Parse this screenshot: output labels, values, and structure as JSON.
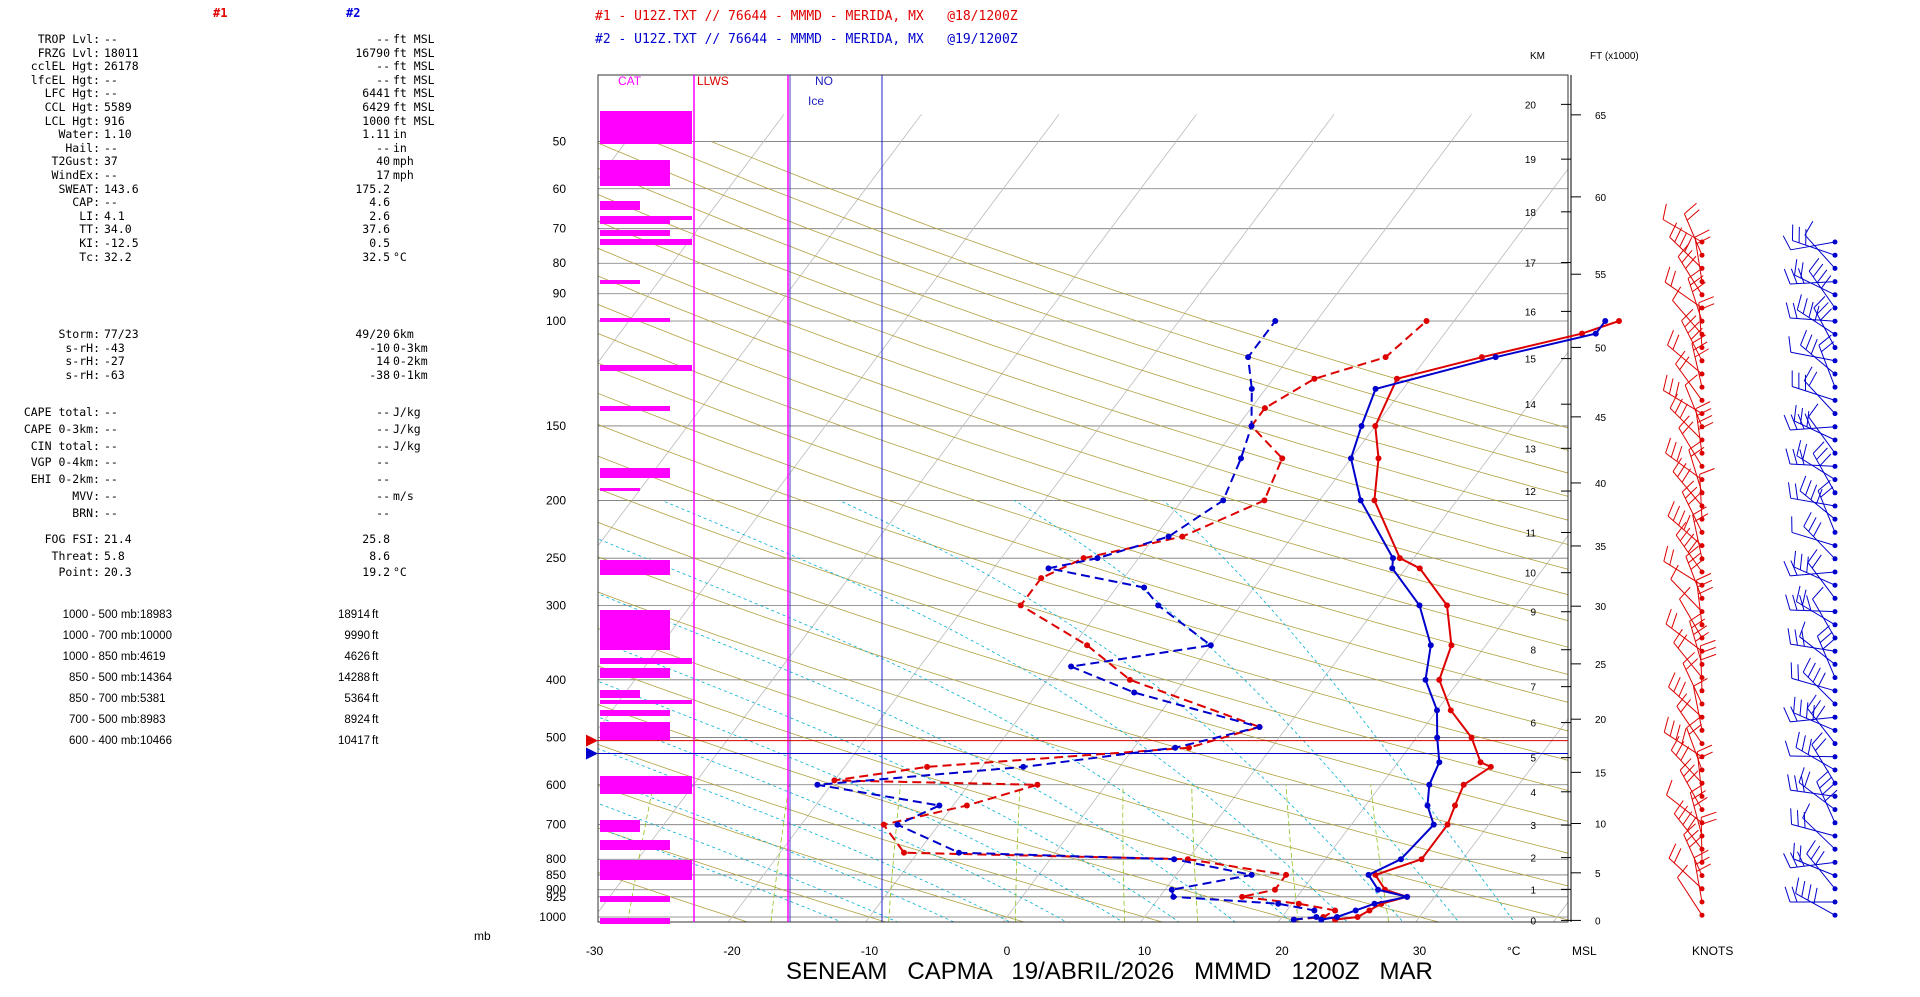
{
  "stats": {
    "header_1": "#1",
    "header_2": "#2",
    "rows": [
      {
        "label": "TROP Lvl:",
        "v1": "--",
        "v2": "--",
        "unit": "ft MSL"
      },
      {
        "label": "FRZG Lvl:",
        "v1": "18011",
        "v2": "16790",
        "unit": "ft MSL"
      },
      {
        "label": "cclEL Hgt:",
        "v1": "26178",
        "v2": "--",
        "unit": "ft MSL"
      },
      {
        "label": "lfcEL Hgt:",
        "v1": "--",
        "v2": "--",
        "unit": "ft MSL"
      },
      {
        "label": "LFC Hgt:",
        "v1": "--",
        "v2": "6441",
        "unit": "ft MSL"
      },
      {
        "label": "CCL Hgt:",
        "v1": "5589",
        "v2": "6429",
        "unit": "ft MSL"
      },
      {
        "label": "LCL Hgt:",
        "v1": "916",
        "v2": "1000",
        "unit": "ft MSL"
      },
      {
        "label": "Water:",
        "v1": "1.10",
        "v2": "1.11",
        "unit": "in"
      },
      {
        "label": "Hail:",
        "v1": "--",
        "v2": "--",
        "unit": "in"
      },
      {
        "label": "T2Gust:",
        "v1": "37",
        "v2": "40",
        "unit": "mph"
      },
      {
        "label": "WindEx:",
        "v1": "--",
        "v2": "17",
        "unit": "mph"
      },
      {
        "label": "SWEAT:",
        "v1": "143.6",
        "v2": "175.2",
        "unit": ""
      },
      {
        "label": "CAP:",
        "v1": "--",
        "v2": "4.6",
        "unit": ""
      },
      {
        "label": "LI:",
        "v1": "4.1",
        "v2": "2.6",
        "unit": ""
      },
      {
        "label": "TT:",
        "v1": "34.0",
        "v2": "37.6",
        "unit": ""
      },
      {
        "label": "KI:",
        "v1": "-12.5",
        "v2": "0.5",
        "unit": ""
      },
      {
        "label": "Tc:",
        "v1": "32.2",
        "v2": "32.5",
        "unit": "°C"
      }
    ],
    "rows_b": [
      {
        "label": "Storm:",
        "v1": "77/23",
        "v2": "49/20",
        "unit": "6km"
      },
      {
        "label": "s-rH:",
        "v1": "-43",
        "v2": "-10",
        "unit": "0-3km"
      },
      {
        "label": "s-rH:",
        "v1": "-27",
        "v2": "14",
        "unit": "0-2km"
      },
      {
        "label": "s-rH:",
        "v1": "-63",
        "v2": "-38",
        "unit": "0-1km"
      }
    ],
    "rows_c": [
      {
        "label": "CAPE total:",
        "v1": "--",
        "v2": "--",
        "unit": "J/kg"
      },
      {
        "label": "CAPE 0-3km:",
        "v1": "--",
        "v2": "--",
        "unit": "J/kg"
      },
      {
        "label": "CIN total:",
        "v1": "--",
        "v2": "--",
        "unit": "J/kg"
      },
      {
        "label": "VGP 0-4km:",
        "v1": "--",
        "v2": "--",
        "unit": ""
      },
      {
        "label": "EHI 0-2km:",
        "v1": "--",
        "v2": "--",
        "unit": ""
      },
      {
        "label": "MVV:",
        "v1": "--",
        "v2": "--",
        "unit": "m/s"
      },
      {
        "label": "BRN:",
        "v1": "--",
        "v2": "--",
        "unit": ""
      }
    ],
    "rows_d": [
      {
        "label": "FOG FSI:",
        "v1": "21.4",
        "v2": "25.8",
        "unit": ""
      },
      {
        "label": "Threat:",
        "v1": "5.8",
        "v2": "8.6",
        "unit": ""
      },
      {
        "label": "Point:",
        "v1": "20.3",
        "v2": "19.2",
        "unit": "°C"
      }
    ],
    "layers": [
      {
        "label": "1000 - 500 mb:",
        "v1": "18983",
        "v2": "18914",
        "unit": "ft"
      },
      {
        "label": "1000 - 700 mb:",
        "v1": "10000",
        "v2": "9990",
        "unit": "ft"
      },
      {
        "label": "1000 - 850 mb:",
        "v1": "4619",
        "v2": "4626",
        "unit": "ft"
      },
      {
        "label": "850 - 500 mb:",
        "v1": "14364",
        "v2": "14288",
        "unit": "ft"
      },
      {
        "label": "850 - 700 mb:",
        "v1": "5381",
        "v2": "5364",
        "unit": "ft"
      },
      {
        "label": "700 - 500 mb:",
        "v1": "8983",
        "v2": "8924",
        "unit": "ft"
      },
      {
        "label": "600 - 400 mb:",
        "v1": "10466",
        "v2": "10417",
        "unit": "ft"
      }
    ]
  },
  "titles": {
    "line1": "#1 - U12Z.TXT // 76644 - MMMD - MERIDA, MX   @18/1200Z",
    "line2": "#2 - U12Z.TXT // 76644 - MMMD - MERIDA, MX   @19/1200Z"
  },
  "footer": "SENEAM   CAPMA   19/ABRIL/2026   MMMD   1200Z   MAR",
  "colors": {
    "series1": "#dd0000",
    "series2": "#0000cc",
    "cloud": "#ff00ff",
    "grid": "#b0a040",
    "moist": "#00b0d0",
    "mixing": "#90c020"
  },
  "chart_data": {
    "type": "skew-t",
    "xlabel_unit": "°C",
    "ylabel_unit": "mb",
    "pressure_ticks": [
      50,
      60,
      70,
      80,
      90,
      100,
      150,
      200,
      250,
      300,
      400,
      500,
      600,
      700,
      800,
      850,
      900,
      925,
      1000
    ],
    "temp_ticks": [
      -30,
      -20,
      -10,
      0,
      10,
      20,
      30
    ],
    "km_label": "KM",
    "ft_label": "FT (x1000)",
    "msl_label": "MSL",
    "knots_label": "KNOTS",
    "km_ticks": [
      0,
      1,
      2,
      3,
      4,
      5,
      6,
      7,
      8,
      9,
      10,
      11,
      12,
      13,
      14,
      15,
      16,
      17,
      18,
      19,
      20
    ],
    "ft_ticks": [
      0,
      5,
      10,
      15,
      20,
      25,
      30,
      35,
      40,
      45,
      50,
      55,
      60,
      65
    ],
    "panel_labels": {
      "cat": "CAT",
      "llws": "LLWS",
      "no": "NO",
      "ice": "Ice"
    },
    "series": [
      {
        "name": "#1",
        "temperature": [
          [
            1010,
            24
          ],
          [
            1000,
            25.5
          ],
          [
            975,
            26
          ],
          [
            950,
            26.5
          ],
          [
            925,
            28
          ],
          [
            900,
            26
          ],
          [
            850,
            24.5
          ],
          [
            800,
            27
          ],
          [
            700,
            27
          ],
          [
            650,
            26.5
          ],
          [
            600,
            26
          ],
          [
            560,
            27
          ],
          [
            550,
            26
          ],
          [
            500,
            24
          ],
          [
            450,
            21
          ],
          [
            400,
            18.5
          ],
          [
            350,
            17.5
          ],
          [
            300,
            15
          ],
          [
            260,
            11
          ],
          [
            250,
            9
          ],
          [
            200,
            4
          ],
          [
            170,
            2
          ],
          [
            150,
            0
          ],
          [
            125,
            -1
          ],
          [
            115,
            4
          ],
          [
            105,
            10
          ],
          [
            100,
            12
          ]
        ],
        "dewpoint": [
          [
            1010,
            21
          ],
          [
            1000,
            23
          ],
          [
            975,
            23.5
          ],
          [
            950,
            20.5
          ],
          [
            925,
            16
          ],
          [
            900,
            18
          ],
          [
            850,
            18
          ],
          [
            800,
            10
          ],
          [
            780,
            -11
          ],
          [
            700,
            -14
          ],
          [
            650,
            -9
          ],
          [
            600,
            -5
          ],
          [
            590,
            -20
          ],
          [
            560,
            -14
          ],
          [
            520,
            4
          ],
          [
            480,
            8
          ],
          [
            400,
            -4
          ],
          [
            350,
            -9
          ],
          [
            300,
            -16
          ],
          [
            270,
            -16
          ],
          [
            250,
            -14
          ],
          [
            230,
            -8
          ],
          [
            200,
            -4
          ],
          [
            170,
            -5
          ],
          [
            150,
            -9
          ],
          [
            140,
            -9
          ],
          [
            125,
            -7
          ],
          [
            115,
            -3
          ],
          [
            100,
            -2
          ]
        ]
      },
      {
        "name": "#2",
        "temperature": [
          [
            1010,
            23
          ],
          [
            1000,
            24
          ],
          [
            975,
            25
          ],
          [
            950,
            26
          ],
          [
            925,
            28
          ],
          [
            900,
            25.5
          ],
          [
            850,
            24
          ],
          [
            800,
            25.5
          ],
          [
            700,
            26
          ],
          [
            650,
            24.5
          ],
          [
            600,
            23.5
          ],
          [
            550,
            23
          ],
          [
            500,
            21.5
          ],
          [
            450,
            20
          ],
          [
            400,
            17.5
          ],
          [
            350,
            16
          ],
          [
            300,
            13
          ],
          [
            260,
            9
          ],
          [
            250,
            8.5
          ],
          [
            200,
            3
          ],
          [
            170,
            0
          ],
          [
            150,
            -1
          ],
          [
            130,
            -2
          ],
          [
            115,
            5
          ],
          [
            105,
            11
          ],
          [
            100,
            11
          ]
        ],
        "dewpoint": [
          [
            1010,
            21
          ],
          [
            1000,
            22.5
          ],
          [
            975,
            22
          ],
          [
            950,
            19
          ],
          [
            925,
            11
          ],
          [
            900,
            10.5
          ],
          [
            850,
            15.5
          ],
          [
            800,
            9
          ],
          [
            780,
            -7
          ],
          [
            700,
            -13
          ],
          [
            650,
            -11
          ],
          [
            600,
            -21
          ],
          [
            560,
            -7
          ],
          [
            520,
            3
          ],
          [
            480,
            8
          ],
          [
            420,
            -3
          ],
          [
            380,
            -9
          ],
          [
            350,
            0
          ],
          [
            300,
            -6
          ],
          [
            280,
            -8
          ],
          [
            260,
            -16
          ],
          [
            250,
            -13
          ],
          [
            230,
            -9
          ],
          [
            200,
            -7
          ],
          [
            170,
            -8
          ],
          [
            150,
            -9
          ],
          [
            130,
            -11
          ],
          [
            115,
            -13
          ],
          [
            100,
            -13
          ]
        ]
      }
    ]
  }
}
